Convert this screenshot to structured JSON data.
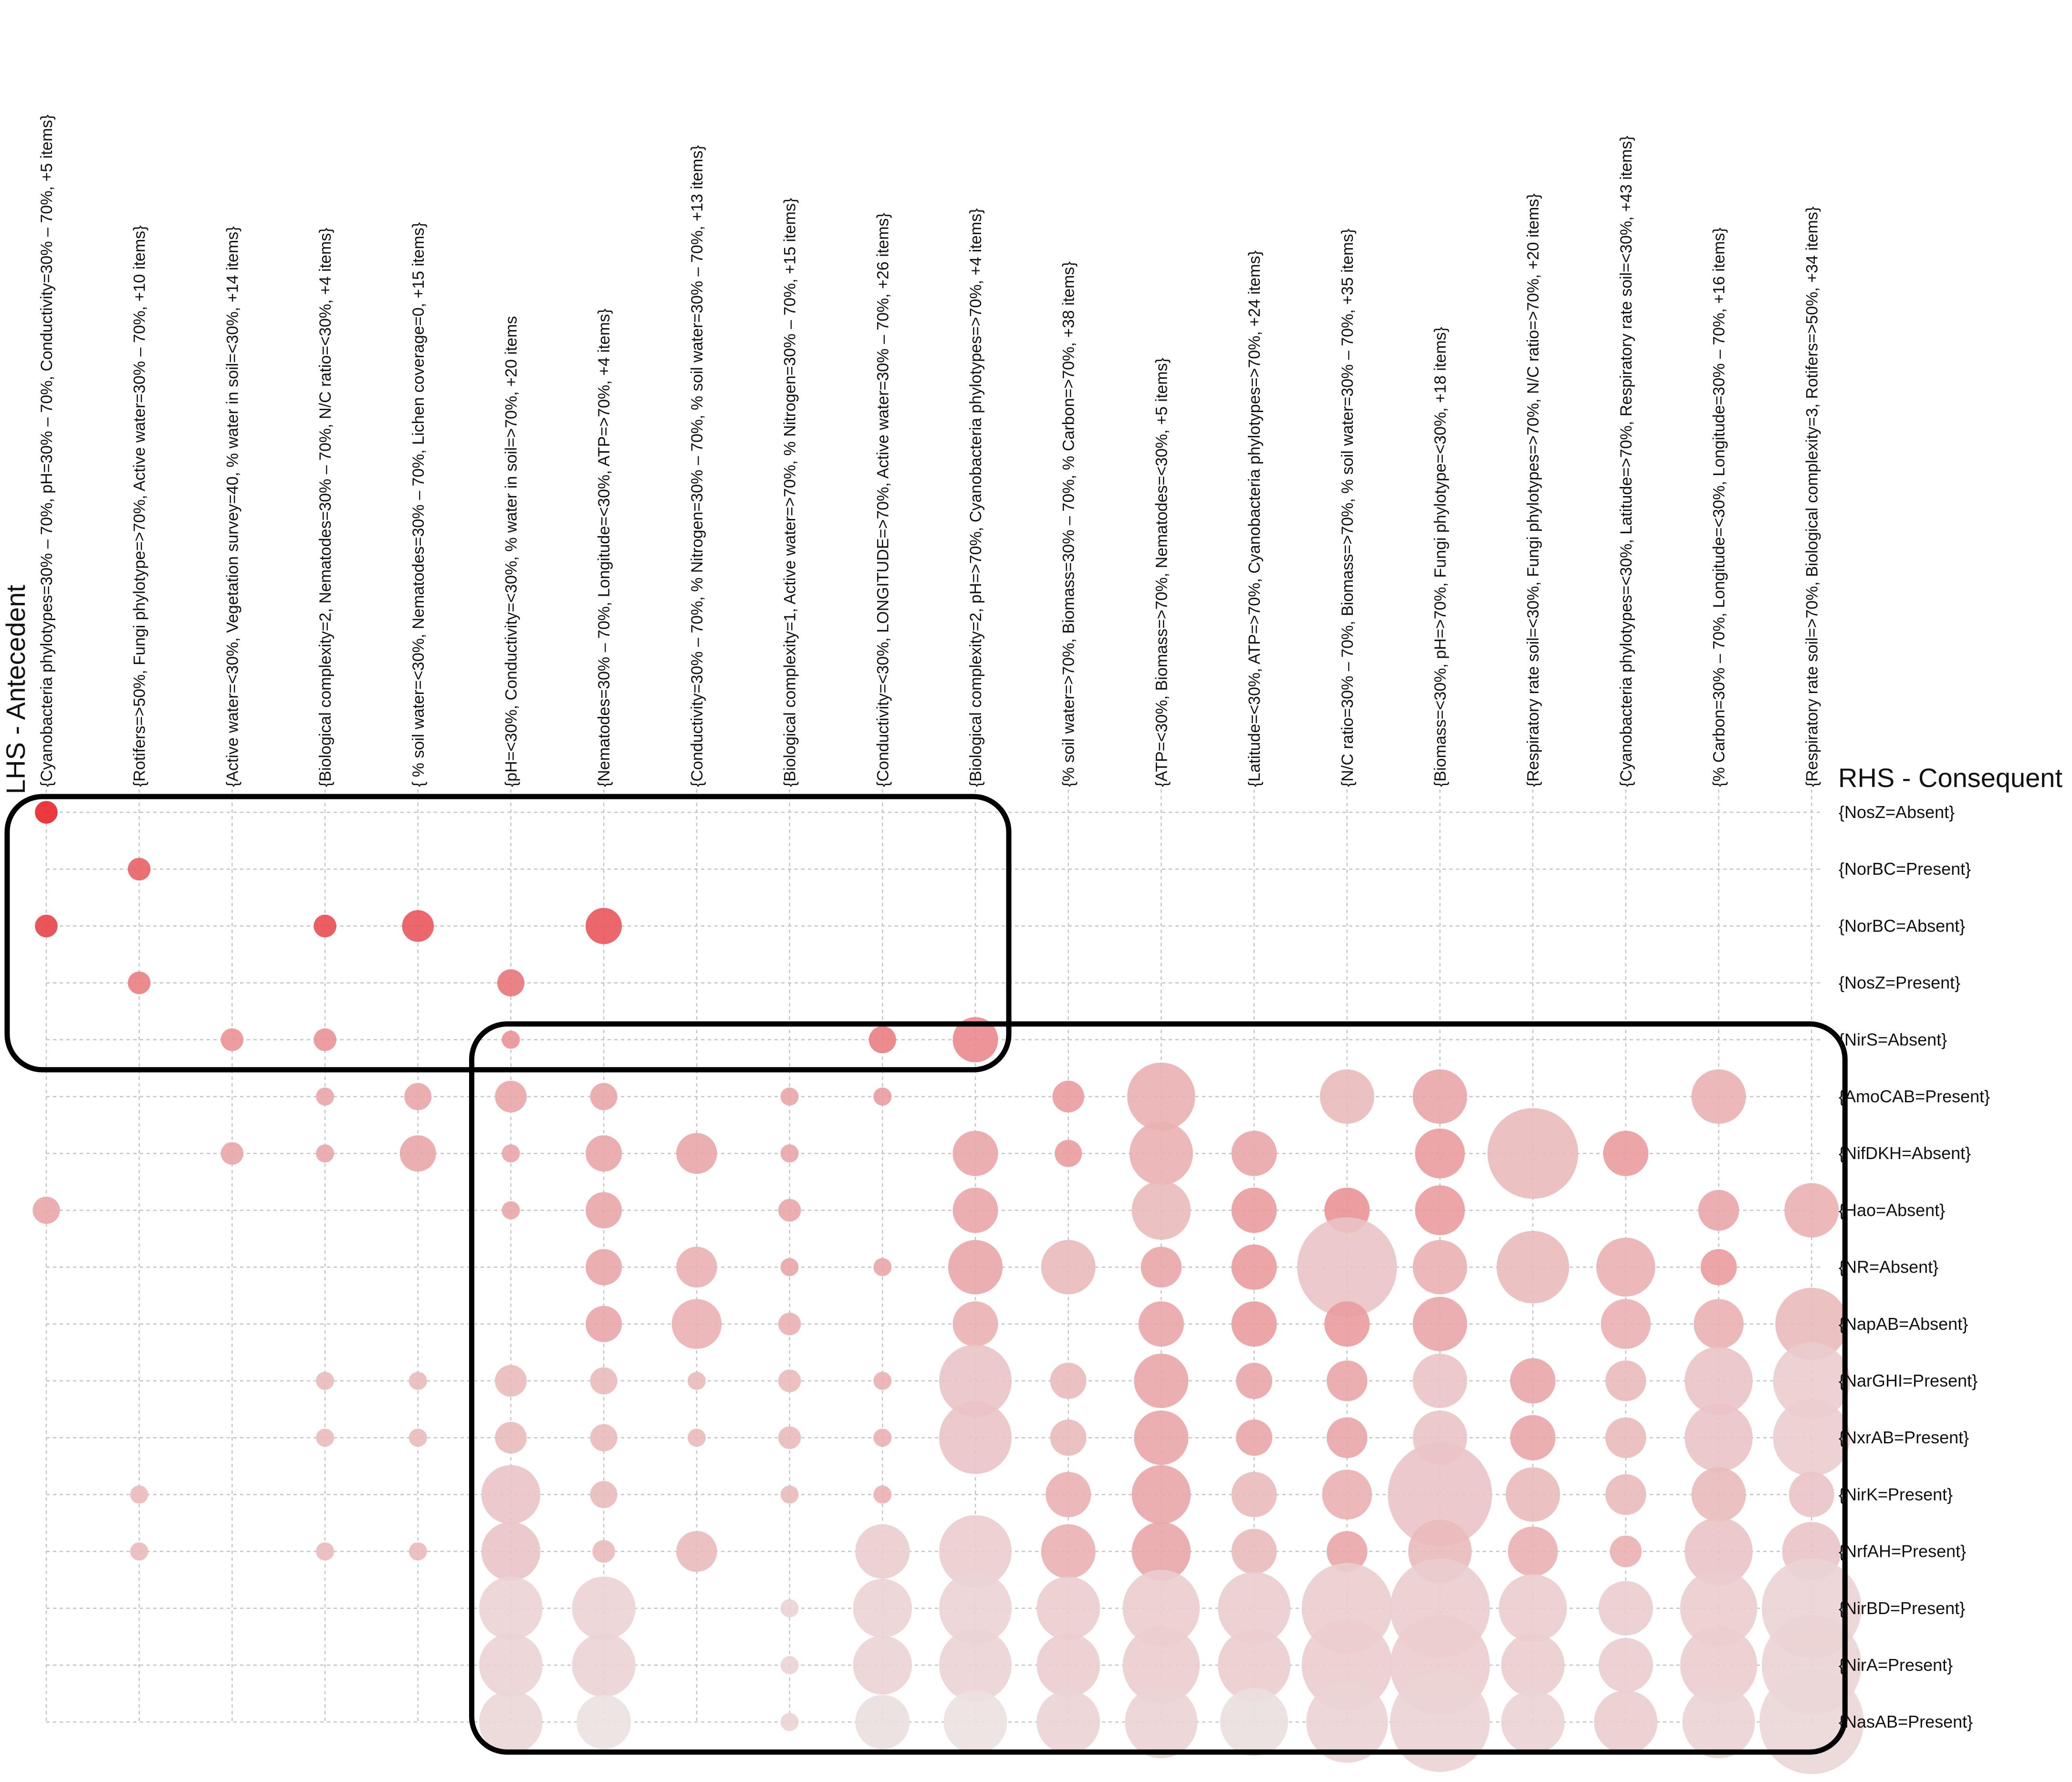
{
  "chart_data": {
    "type": "scatter",
    "subtype": "grouped-matrix",
    "lhs_title": "LHS - Antecedent",
    "rhs_title": "RHS - Consequent",
    "lhs": [
      "{Cyanobacteria phylotypes=30% – 70%, pH=30% – 70%, Conductivity=30% – 70%, +5 items}",
      "{Rotifers=>50%, Fungi phylotype=>70%, Active water=30% – 70%, +10 items}",
      "{Active water=<30%, Vegetation survey=40, % water in soil=<30%, +14 items}",
      "{Biological complexity=2, Nematodes=30% – 70%, N/C ratio=<30%, +4 items}",
      "{ % soil water=<30%, Nematodes=30% – 70%, Lichen coverage=0, +15 items}",
      "{pH=<30%, Conductivity=<30%, % water in soil=>70%, +20 items",
      "{Nematodes=30% – 70%, Longitude=<30%, ATP=>70%, +4 items}",
      "{Conductivity=30% – 70%, % Nitrogen=30% – 70%, % soil water=30% – 70%, +13 items}",
      "{Biological complexity=1, Active water=>70%, % Nitrogen=30% – 70%, +15 items}",
      "{Conductivity=<30%, LONGITUDE=>70%, Active water=30% – 70%, +26 items}",
      "{Biological complexity=2, pH=>70%, Cyanobacteria phylotypes=>70%, +4 items}",
      "{% soil water=>70%, Biomass=30% – 70%, % Carbon=>70%, +38 items}",
      "{ATP=<30%, Biomass=>70%, Nematodes=<30%, +5 items}",
      "{Latitude=<30%, ATP=>70%, Cyanobacteria phylotypes=>70%, +24 items}",
      "{N/C ratio=30% – 70%, Biomass=>70%, % soil water=30% – 70%, +35 items}",
      "{Biomass=<30%, pH=>70%, Fungi phylotype=<30%, +18 items}",
      "{Respiratory rate soil=<30%, Fungi phylotypes=>70%, N/C ratio=>70%, +20 items}",
      "{Cyanobacteria phylotypes=<30%, Latitude=>70%, Respiratory rate soil=<30%, +43 items}",
      "{% Carbon=30% – 70%, Longitude=<30%, Longitude=30% – 70%, +16 items}",
      "{Respiratory rate soil=>70%, Biological complexity=3, Rotifers=>50%, +34 items}"
    ],
    "rhs": [
      "{NosZ=Absent}",
      "{NorBC=Present}",
      "{NorBC=Absent}",
      "{NosZ=Present}",
      "{NirS=Absent}",
      "{AmoCAB=Present}",
      "{NifDKH=Absent}",
      "{Hao=Absent}",
      "{NR=Absent}",
      "{NapAB=Absent}",
      "{NarGHI=Present}",
      "{NxrAB=Present}",
      "{NirK=Present}",
      "{NrfAH=Present}",
      "{NirBD=Present}",
      "{NirA=Present}",
      "{NasAB=Present}"
    ],
    "points": [
      [
        0,
        0,
        2.5,
        1.0
      ],
      [
        0,
        2,
        2.5,
        0.85
      ],
      [
        0,
        7,
        3.0,
        0.35
      ],
      [
        1,
        1,
        2.5,
        0.7
      ],
      [
        1,
        3,
        2.5,
        0.55
      ],
      [
        1,
        12,
        2.0,
        0.25
      ],
      [
        1,
        13,
        2.0,
        0.25
      ],
      [
        2,
        4,
        2.5,
        0.45
      ],
      [
        2,
        6,
        2.5,
        0.35
      ],
      [
        3,
        2,
        2.5,
        0.8
      ],
      [
        3,
        4,
        2.5,
        0.45
      ],
      [
        3,
        5,
        2.0,
        0.35
      ],
      [
        3,
        6,
        2.0,
        0.35
      ],
      [
        3,
        10,
        2.0,
        0.25
      ],
      [
        3,
        11,
        2.0,
        0.25
      ],
      [
        3,
        13,
        2.0,
        0.25
      ],
      [
        4,
        2,
        3.5,
        0.75
      ],
      [
        4,
        5,
        3.0,
        0.35
      ],
      [
        4,
        6,
        4.0,
        0.35
      ],
      [
        4,
        10,
        2.0,
        0.25
      ],
      [
        4,
        11,
        2.0,
        0.25
      ],
      [
        4,
        13,
        2.0,
        0.25
      ],
      [
        5,
        3,
        3.0,
        0.6
      ],
      [
        5,
        4,
        2.0,
        0.45
      ],
      [
        5,
        5,
        3.5,
        0.35
      ],
      [
        5,
        6,
        2.0,
        0.35
      ],
      [
        5,
        7,
        2.0,
        0.35
      ],
      [
        5,
        10,
        3.5,
        0.25
      ],
      [
        5,
        11,
        3.5,
        0.25
      ],
      [
        5,
        12,
        6.5,
        0.2
      ],
      [
        5,
        13,
        6.5,
        0.2
      ],
      [
        5,
        14,
        7.0,
        0.12
      ],
      [
        5,
        15,
        7.0,
        0.12
      ],
      [
        5,
        16,
        7.0,
        0.1
      ],
      [
        6,
        2,
        4.0,
        0.75
      ],
      [
        6,
        5,
        3.0,
        0.35
      ],
      [
        6,
        6,
        4.0,
        0.35
      ],
      [
        6,
        7,
        4.0,
        0.35
      ],
      [
        6,
        8,
        4.0,
        0.35
      ],
      [
        6,
        9,
        4.0,
        0.35
      ],
      [
        6,
        10,
        3.0,
        0.25
      ],
      [
        6,
        11,
        3.0,
        0.25
      ],
      [
        6,
        12,
        3.0,
        0.25
      ],
      [
        6,
        13,
        2.5,
        0.25
      ],
      [
        6,
        14,
        7.0,
        0.12
      ],
      [
        6,
        15,
        7.0,
        0.12
      ],
      [
        6,
        16,
        6.0,
        0.05
      ],
      [
        7,
        6,
        4.5,
        0.35
      ],
      [
        7,
        8,
        4.5,
        0.3
      ],
      [
        7,
        9,
        5.5,
        0.3
      ],
      [
        7,
        10,
        2.0,
        0.25
      ],
      [
        7,
        11,
        2.0,
        0.25
      ],
      [
        7,
        13,
        4.5,
        0.25
      ],
      [
        8,
        5,
        2.0,
        0.35
      ],
      [
        8,
        6,
        2.0,
        0.35
      ],
      [
        8,
        7,
        2.5,
        0.35
      ],
      [
        8,
        8,
        2.0,
        0.35
      ],
      [
        8,
        9,
        2.5,
        0.3
      ],
      [
        8,
        10,
        2.5,
        0.25
      ],
      [
        8,
        11,
        2.5,
        0.25
      ],
      [
        8,
        12,
        2.0,
        0.25
      ],
      [
        8,
        14,
        2.0,
        0.12
      ],
      [
        8,
        15,
        2.0,
        0.12
      ],
      [
        8,
        16,
        2.0,
        0.12
      ],
      [
        9,
        4,
        3.0,
        0.55
      ],
      [
        9,
        5,
        2.0,
        0.4
      ],
      [
        9,
        8,
        2.0,
        0.35
      ],
      [
        9,
        10,
        2.0,
        0.3
      ],
      [
        9,
        11,
        2.0,
        0.3
      ],
      [
        9,
        12,
        2.0,
        0.3
      ],
      [
        9,
        13,
        6.0,
        0.15
      ],
      [
        9,
        14,
        6.5,
        0.12
      ],
      [
        9,
        15,
        6.5,
        0.12
      ],
      [
        9,
        16,
        6.0,
        0.06
      ],
      [
        10,
        4,
        5.0,
        0.5
      ],
      [
        10,
        6,
        5.0,
        0.35
      ],
      [
        10,
        7,
        5.0,
        0.35
      ],
      [
        10,
        8,
        6.0,
        0.35
      ],
      [
        10,
        9,
        5.0,
        0.3
      ],
      [
        10,
        10,
        8.0,
        0.2
      ],
      [
        10,
        11,
        8.0,
        0.2
      ],
      [
        10,
        13,
        8.0,
        0.15
      ],
      [
        10,
        14,
        8.0,
        0.12
      ],
      [
        10,
        15,
        8.0,
        0.12
      ],
      [
        10,
        16,
        7.0,
        0.05
      ],
      [
        11,
        5,
        3.5,
        0.4
      ],
      [
        11,
        6,
        3.0,
        0.4
      ],
      [
        11,
        8,
        6.0,
        0.25
      ],
      [
        11,
        10,
        4.0,
        0.25
      ],
      [
        11,
        11,
        4.0,
        0.25
      ],
      [
        11,
        12,
        5.0,
        0.3
      ],
      [
        11,
        13,
        6.0,
        0.3
      ],
      [
        11,
        14,
        7.0,
        0.15
      ],
      [
        11,
        15,
        7.0,
        0.15
      ],
      [
        11,
        16,
        7.0,
        0.12
      ],
      [
        12,
        5,
        7.5,
        0.3
      ],
      [
        12,
        6,
        7.0,
        0.3
      ],
      [
        12,
        7,
        6.5,
        0.25
      ],
      [
        12,
        8,
        4.5,
        0.35
      ],
      [
        12,
        9,
        5.0,
        0.35
      ],
      [
        12,
        10,
        6.0,
        0.35
      ],
      [
        12,
        11,
        6.0,
        0.35
      ],
      [
        12,
        12,
        6.5,
        0.35
      ],
      [
        12,
        13,
        6.5,
        0.35
      ],
      [
        12,
        14,
        8.5,
        0.15
      ],
      [
        12,
        15,
        8.5,
        0.15
      ],
      [
        12,
        16,
        8.0,
        0.12
      ],
      [
        13,
        6,
        5.0,
        0.35
      ],
      [
        13,
        7,
        5.0,
        0.4
      ],
      [
        13,
        8,
        5.0,
        0.4
      ],
      [
        13,
        9,
        5.0,
        0.4
      ],
      [
        13,
        10,
        4.0,
        0.35
      ],
      [
        13,
        11,
        4.0,
        0.35
      ],
      [
        13,
        12,
        5.0,
        0.25
      ],
      [
        13,
        13,
        5.0,
        0.25
      ],
      [
        13,
        14,
        8.0,
        0.15
      ],
      [
        13,
        15,
        8.0,
        0.15
      ],
      [
        13,
        16,
        7.5,
        0.06
      ],
      [
        14,
        5,
        6.0,
        0.25
      ],
      [
        14,
        7,
        5.0,
        0.45
      ],
      [
        14,
        8,
        11.0,
        0.2
      ],
      [
        14,
        9,
        5.0,
        0.4
      ],
      [
        14,
        10,
        4.5,
        0.35
      ],
      [
        14,
        11,
        4.5,
        0.35
      ],
      [
        14,
        12,
        5.5,
        0.3
      ],
      [
        14,
        13,
        4.5,
        0.35
      ],
      [
        14,
        14,
        10.0,
        0.15
      ],
      [
        14,
        15,
        10.0,
        0.15
      ],
      [
        14,
        16,
        9.0,
        0.12
      ],
      [
        15,
        5,
        6.0,
        0.35
      ],
      [
        15,
        6,
        5.5,
        0.4
      ],
      [
        15,
        7,
        5.5,
        0.4
      ],
      [
        15,
        8,
        6.0,
        0.3
      ],
      [
        15,
        9,
        6.0,
        0.35
      ],
      [
        15,
        10,
        6.0,
        0.2
      ],
      [
        15,
        11,
        6.0,
        0.2
      ],
      [
        15,
        12,
        11.5,
        0.2
      ],
      [
        15,
        13,
        7.0,
        0.25
      ],
      [
        15,
        14,
        11.0,
        0.15
      ],
      [
        15,
        15,
        11.0,
        0.15
      ],
      [
        15,
        16,
        11.0,
        0.12
      ],
      [
        16,
        6,
        10.0,
        0.25
      ],
      [
        16,
        8,
        8.0,
        0.25
      ],
      [
        16,
        10,
        5.0,
        0.35
      ],
      [
        16,
        11,
        5.0,
        0.35
      ],
      [
        16,
        12,
        6.0,
        0.25
      ],
      [
        16,
        13,
        5.5,
        0.3
      ],
      [
        16,
        14,
        7.5,
        0.15
      ],
      [
        16,
        15,
        7.0,
        0.15
      ],
      [
        16,
        16,
        7.0,
        0.12
      ],
      [
        17,
        6,
        5.0,
        0.4
      ],
      [
        17,
        8,
        6.5,
        0.3
      ],
      [
        17,
        9,
        5.5,
        0.3
      ],
      [
        17,
        10,
        4.5,
        0.25
      ],
      [
        17,
        11,
        4.5,
        0.25
      ],
      [
        17,
        12,
        4.5,
        0.25
      ],
      [
        17,
        13,
        3.5,
        0.3
      ],
      [
        17,
        14,
        6.0,
        0.15
      ],
      [
        17,
        15,
        6.0,
        0.15
      ],
      [
        17,
        16,
        7.0,
        0.15
      ],
      [
        18,
        5,
        6.0,
        0.3
      ],
      [
        18,
        7,
        4.5,
        0.35
      ],
      [
        18,
        8,
        4.0,
        0.4
      ],
      [
        18,
        9,
        5.5,
        0.3
      ],
      [
        18,
        10,
        7.5,
        0.2
      ],
      [
        18,
        11,
        7.5,
        0.2
      ],
      [
        18,
        12,
        6.0,
        0.25
      ],
      [
        18,
        13,
        7.5,
        0.2
      ],
      [
        18,
        14,
        8.5,
        0.15
      ],
      [
        18,
        15,
        8.5,
        0.15
      ],
      [
        18,
        16,
        8.0,
        0.12
      ],
      [
        19,
        7,
        6.0,
        0.3
      ],
      [
        19,
        9,
        8.0,
        0.25
      ],
      [
        19,
        10,
        8.5,
        0.15
      ],
      [
        19,
        11,
        8.5,
        0.15
      ],
      [
        19,
        12,
        5.0,
        0.2
      ],
      [
        19,
        13,
        6.5,
        0.2
      ],
      [
        19,
        14,
        11.0,
        0.12
      ],
      [
        19,
        15,
        11.0,
        0.12
      ],
      [
        19,
        16,
        11.5,
        0.1
      ]
    ],
    "point_fields": [
      "lhs_index",
      "rhs_index",
      "size",
      "lift_intensity"
    ],
    "highlight_groups": [
      {
        "lhs_range": [
          0,
          10
        ],
        "rhs_range": [
          0,
          4
        ]
      },
      {
        "lhs_range": [
          5,
          19
        ],
        "rhs_range": [
          4,
          16
        ]
      }
    ],
    "grid": true,
    "colors": {
      "high": "#e8252b",
      "low": "#ebebeb",
      "grid": "#c4c4c4",
      "frame": "#000000"
    }
  }
}
